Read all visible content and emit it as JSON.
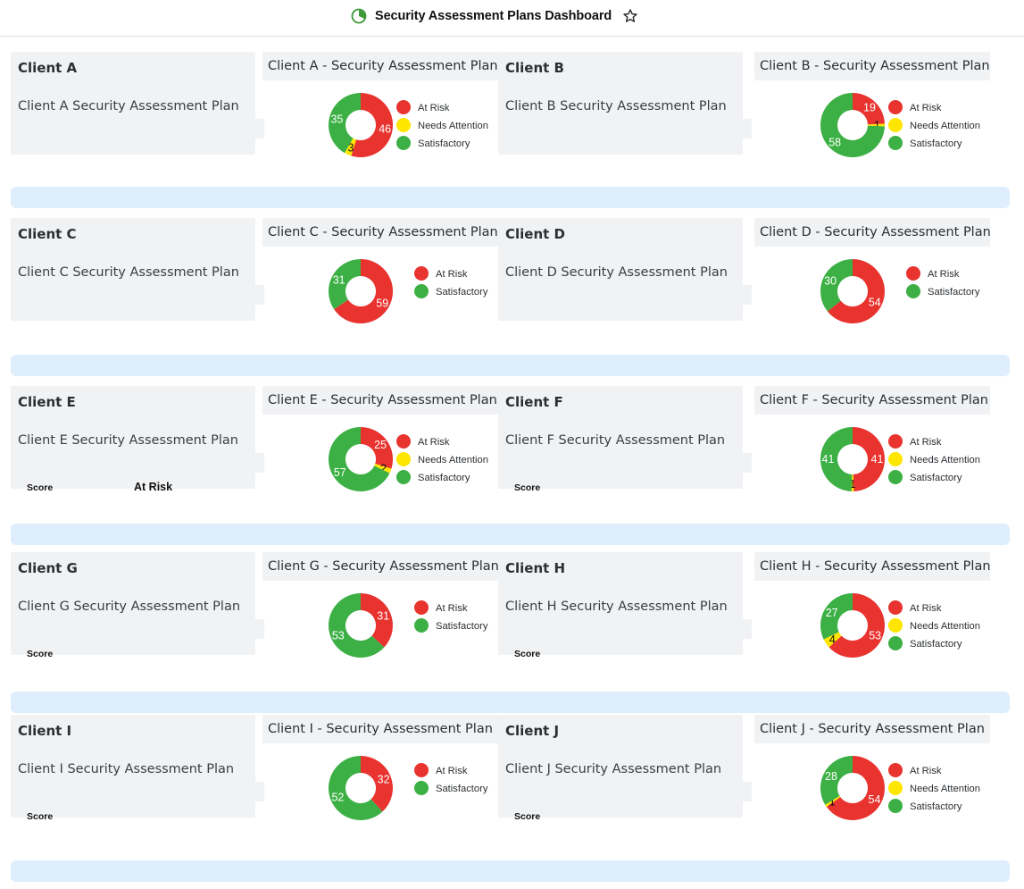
{
  "header": {
    "title": "Security Assessment Plans Dashboard",
    "icon": "pie-chart-icon",
    "favorite_icon": "star-icon"
  },
  "colors": {
    "at_risk": "#e8332f",
    "needs_attention": "#ffe600",
    "satisfactory": "#3cb044",
    "separator": "#deeefc",
    "card": "#f1f2f4"
  },
  "clients": [
    {
      "name": "Client A",
      "plan": "Client A Security Assessment Plan",
      "extra": []
    },
    {
      "name": "Client B",
      "plan": "Client B Security Assessment Plan",
      "extra": []
    },
    {
      "name": "Client C",
      "plan": "Client C Security Assessment Plan",
      "extra": []
    },
    {
      "name": "Client D",
      "plan": "Client D Security Assessment Plan",
      "extra": []
    },
    {
      "name": "Client E",
      "plan": "Client E Security Assessment Plan",
      "extra": [
        "Score",
        "At Risk"
      ]
    },
    {
      "name": "Client F",
      "plan": "Client F Security Assessment Plan",
      "extra": [
        "Score"
      ]
    },
    {
      "name": "Client G",
      "plan": "Client G Security Assessment Plan",
      "extra": [
        "Score"
      ]
    },
    {
      "name": "Client H",
      "plan": "Client H Security Assessment Plan",
      "extra": [
        "Score"
      ]
    },
    {
      "name": "Client I",
      "plan": "Client I Security Assessment Plan",
      "extra": [
        "Score"
      ]
    },
    {
      "name": "Client J",
      "plan": "Client J Security Assessment Plan",
      "extra": [
        "Score"
      ]
    }
  ],
  "chart_data": [
    {
      "type": "pie",
      "title": "Client A - Security Assessment Plan",
      "labels": [
        "At Risk",
        "Needs Attention",
        "Satisfactory"
      ],
      "values": [
        46,
        3,
        35
      ],
      "legend": "right"
    },
    {
      "type": "pie",
      "title": "Client B - Security Assessment Plan",
      "labels": [
        "At Risk",
        "Needs Attention",
        "Satisfactory"
      ],
      "values": [
        19,
        1,
        58
      ],
      "legend": "right"
    },
    {
      "type": "pie",
      "title": "Client C - Security Assessment Plan",
      "labels": [
        "At Risk",
        "Satisfactory"
      ],
      "values": [
        59,
        31
      ],
      "legend": "right"
    },
    {
      "type": "pie",
      "title": "Client D - Security Assessment Plan",
      "labels": [
        "At Risk",
        "Satisfactory"
      ],
      "values": [
        54,
        30
      ],
      "legend": "right"
    },
    {
      "type": "pie",
      "title": "Client E - Security Assessment Plan",
      "labels": [
        "At Risk",
        "Needs Attention",
        "Satisfactory"
      ],
      "values": [
        25,
        2,
        57
      ],
      "legend": "right"
    },
    {
      "type": "pie",
      "title": "Client F - Security Assessment Plan",
      "labels": [
        "At Risk",
        "Needs Attention",
        "Satisfactory"
      ],
      "values": [
        41,
        1,
        41
      ],
      "legend": "right"
    },
    {
      "type": "pie",
      "title": "Client G - Security Assessment Plan",
      "labels": [
        "At Risk",
        "Satisfactory"
      ],
      "values": [
        31,
        53
      ],
      "legend": "right"
    },
    {
      "type": "pie",
      "title": "Client H - Security Assessment Plan",
      "labels": [
        "At Risk",
        "Needs Attention",
        "Satisfactory"
      ],
      "values": [
        53,
        4,
        27
      ],
      "legend": "right"
    },
    {
      "type": "pie",
      "title": "Client I - Security Assessment Plan",
      "labels": [
        "At Risk",
        "Satisfactory"
      ],
      "values": [
        32,
        52
      ],
      "legend": "right"
    },
    {
      "type": "pie",
      "title": "Client J - Security Assessment Plan",
      "labels": [
        "At Risk",
        "Needs Attention",
        "Satisfactory"
      ],
      "values": [
        54,
        1,
        28
      ],
      "legend": "right"
    }
  ]
}
